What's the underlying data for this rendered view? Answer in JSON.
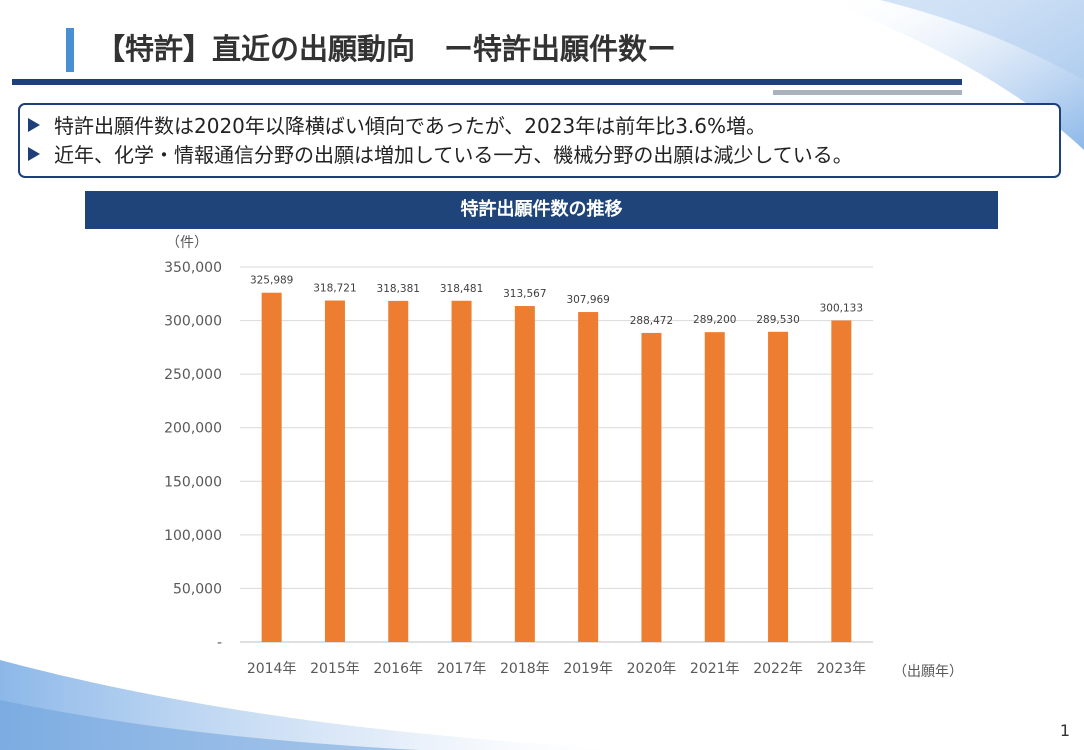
{
  "header": {
    "title": "【特許】直近の出願動向　ー特許出願件数ー"
  },
  "summary": {
    "bullets": [
      "特許出願件数は2020年以降横ばい傾向であったが、2023年は前年比3.6%増。",
      "近年、化学・情報通信分野の出願は増加している一方、機械分野の出願は減少している。"
    ]
  },
  "chart_header": "特許出願件数の推移",
  "page_number": "1",
  "colors": {
    "primary": "#1f3f7a",
    "bar": "#ed7d31",
    "title_accent": "#4a8fd4"
  },
  "chart_data": {
    "type": "bar",
    "title": "特許出願件数の推移",
    "categories": [
      "2014年",
      "2015年",
      "2016年",
      "2017年",
      "2018年",
      "2019年",
      "2020年",
      "2021年",
      "2022年",
      "2023年"
    ],
    "values": [
      325989,
      318721,
      318381,
      318481,
      313567,
      307969,
      288472,
      289200,
      289530,
      300133
    ],
    "value_labels": [
      "325,989",
      "318,721",
      "318,381",
      "318,481",
      "313,567",
      "307,969",
      "288,472",
      "289,200",
      "289,530",
      "300,133"
    ],
    "ylabel": "（件）",
    "xlabel": "（出願年）",
    "ylim": [
      0,
      350000
    ],
    "yticks": [
      0,
      50000,
      100000,
      150000,
      200000,
      250000,
      300000,
      350000
    ],
    "ytick_labels": [
      "-",
      "50,000",
      "100,000",
      "150,000",
      "200,000",
      "250,000",
      "300,000",
      "350,000"
    ],
    "grid": true,
    "legend": "none"
  }
}
